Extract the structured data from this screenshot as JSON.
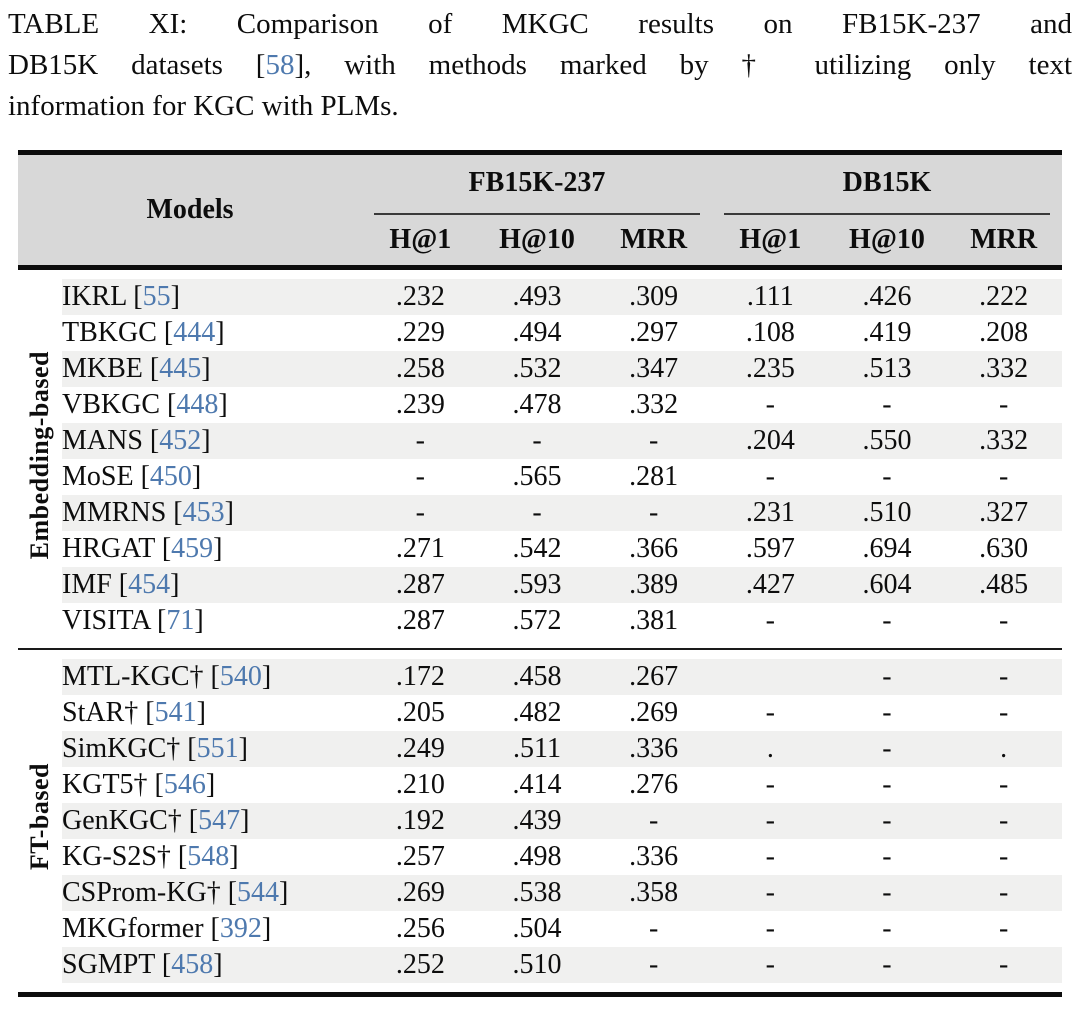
{
  "caption": {
    "line1": "TABLE XI: Comparison of MKGC results on FB15K-237 and",
    "line2_pre": "DB15K datasets [",
    "line2_cite": "58",
    "line2_post": "], with methods marked by † utilizing only text",
    "line3": "information for KGC with PLMs."
  },
  "table": {
    "models_label": "Models",
    "groups": [
      {
        "label": "FB15K-237",
        "cols": [
          "H@1",
          "H@10",
          "MRR"
        ]
      },
      {
        "label": "DB15K",
        "cols": [
          "H@1",
          "H@10",
          "MRR"
        ]
      }
    ],
    "sections": [
      {
        "label": "Embedding-based",
        "rows": [
          {
            "model": "IKRL",
            "cite": "55",
            "values": [
              ".232",
              ".493",
              ".309",
              ".111",
              ".426",
              ".222"
            ]
          },
          {
            "model": "TBKGC",
            "cite": "444",
            "values": [
              ".229",
              ".494",
              ".297",
              ".108",
              ".419",
              ".208"
            ]
          },
          {
            "model": "MKBE",
            "cite": "445",
            "values": [
              ".258",
              ".532",
              ".347",
              ".235",
              ".513",
              ".332"
            ]
          },
          {
            "model": "VBKGC",
            "cite": "448",
            "values": [
              ".239",
              ".478",
              ".332",
              "-",
              "-",
              "-"
            ]
          },
          {
            "model": "MANS",
            "cite": "452",
            "values": [
              "-",
              "-",
              "-",
              ".204",
              ".550",
              ".332"
            ]
          },
          {
            "model": "MoSE",
            "cite": "450",
            "values": [
              "-",
              ".565",
              ".281",
              "-",
              "-",
              "-"
            ]
          },
          {
            "model": "MMRNS",
            "cite": "453",
            "values": [
              "-",
              "-",
              "-",
              ".231",
              ".510",
              ".327"
            ]
          },
          {
            "model": "HRGAT",
            "cite": "459",
            "values": [
              ".271",
              ".542",
              ".366",
              ".597",
              ".694",
              ".630"
            ]
          },
          {
            "model": "IMF",
            "cite": "454",
            "values": [
              ".287",
              ".593",
              ".389",
              ".427",
              ".604",
              ".485"
            ]
          },
          {
            "model": "VISITA",
            "cite": "71",
            "values": [
              ".287",
              ".572",
              ".381",
              "-",
              "-",
              "-"
            ]
          }
        ]
      },
      {
        "label": "FT-based",
        "rows": [
          {
            "model": "MTL-KGC†",
            "cite": "540",
            "values": [
              ".172",
              ".458",
              ".267",
              "",
              "-",
              "-"
            ]
          },
          {
            "model": "StAR†",
            "cite": "541",
            "values": [
              ".205",
              ".482",
              ".269",
              "-",
              "-",
              "-"
            ]
          },
          {
            "model": "SimKGC†",
            "cite": "551",
            "values": [
              ".249",
              ".511",
              ".336",
              ".",
              "-",
              "."
            ]
          },
          {
            "model": "KGT5†",
            "cite": "546",
            "values": [
              ".210",
              ".414",
              ".276",
              "-",
              "-",
              "-"
            ]
          },
          {
            "model": "GenKGC†",
            "cite": "547",
            "values": [
              ".192",
              ".439",
              "-",
              "-",
              "-",
              "-"
            ]
          },
          {
            "model": "KG-S2S†",
            "cite": "548",
            "values": [
              ".257",
              ".498",
              ".336",
              "-",
              "-",
              "-"
            ]
          },
          {
            "model": "CSProm-KG†",
            "cite": "544",
            "values": [
              ".269",
              ".538",
              ".358",
              "-",
              "-",
              "-"
            ]
          },
          {
            "model": "MKGformer",
            "cite": "392",
            "values": [
              ".256",
              ".504",
              "-",
              "-",
              "-",
              "-"
            ]
          },
          {
            "model": "SGMPT",
            "cite": "458",
            "values": [
              ".252",
              ".510",
              "-",
              "-",
              "-",
              "-"
            ]
          }
        ]
      }
    ]
  },
  "colors": {
    "header_bg": "#d8d8d8",
    "stripe_bg": "#f0f0ef",
    "cite_blue": "#4e79ae",
    "rule_black": "#0d0d0d"
  }
}
